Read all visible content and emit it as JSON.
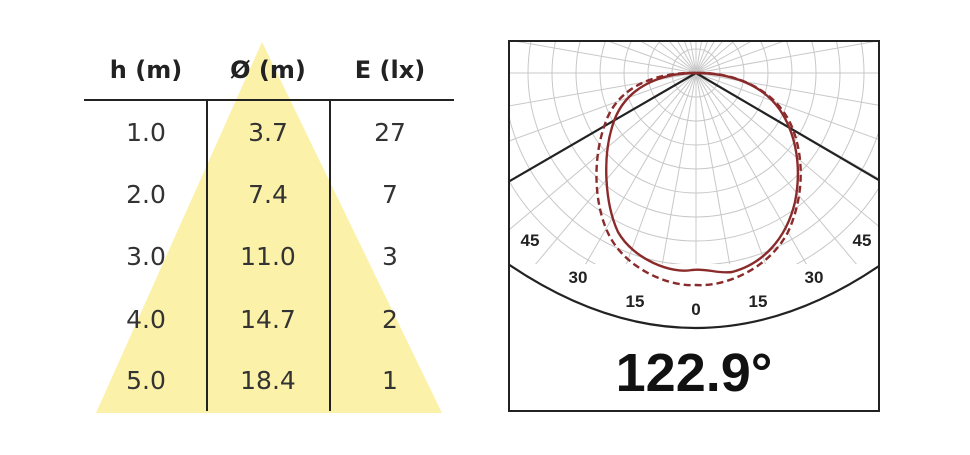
{
  "table": {
    "headers": [
      "h (m)",
      "Ø (m)",
      "E (lx)"
    ],
    "rows": [
      [
        "1.0",
        "3.7",
        "27"
      ],
      [
        "2.0",
        "7.4",
        "7"
      ],
      [
        "3.0",
        "11.0",
        "3"
      ],
      [
        "4.0",
        "14.7",
        "2"
      ],
      [
        "5.0",
        "18.4",
        "1"
      ]
    ]
  },
  "polar": {
    "angle_labels": [
      "45",
      "30",
      "15",
      "0",
      "15",
      "30",
      "45"
    ],
    "beam_angle": "122.9°"
  },
  "colors": {
    "cone": "#fbf1a8",
    "curve": "#8b2a2a",
    "lines": "#222222",
    "grid": "#c8c8c8"
  }
}
